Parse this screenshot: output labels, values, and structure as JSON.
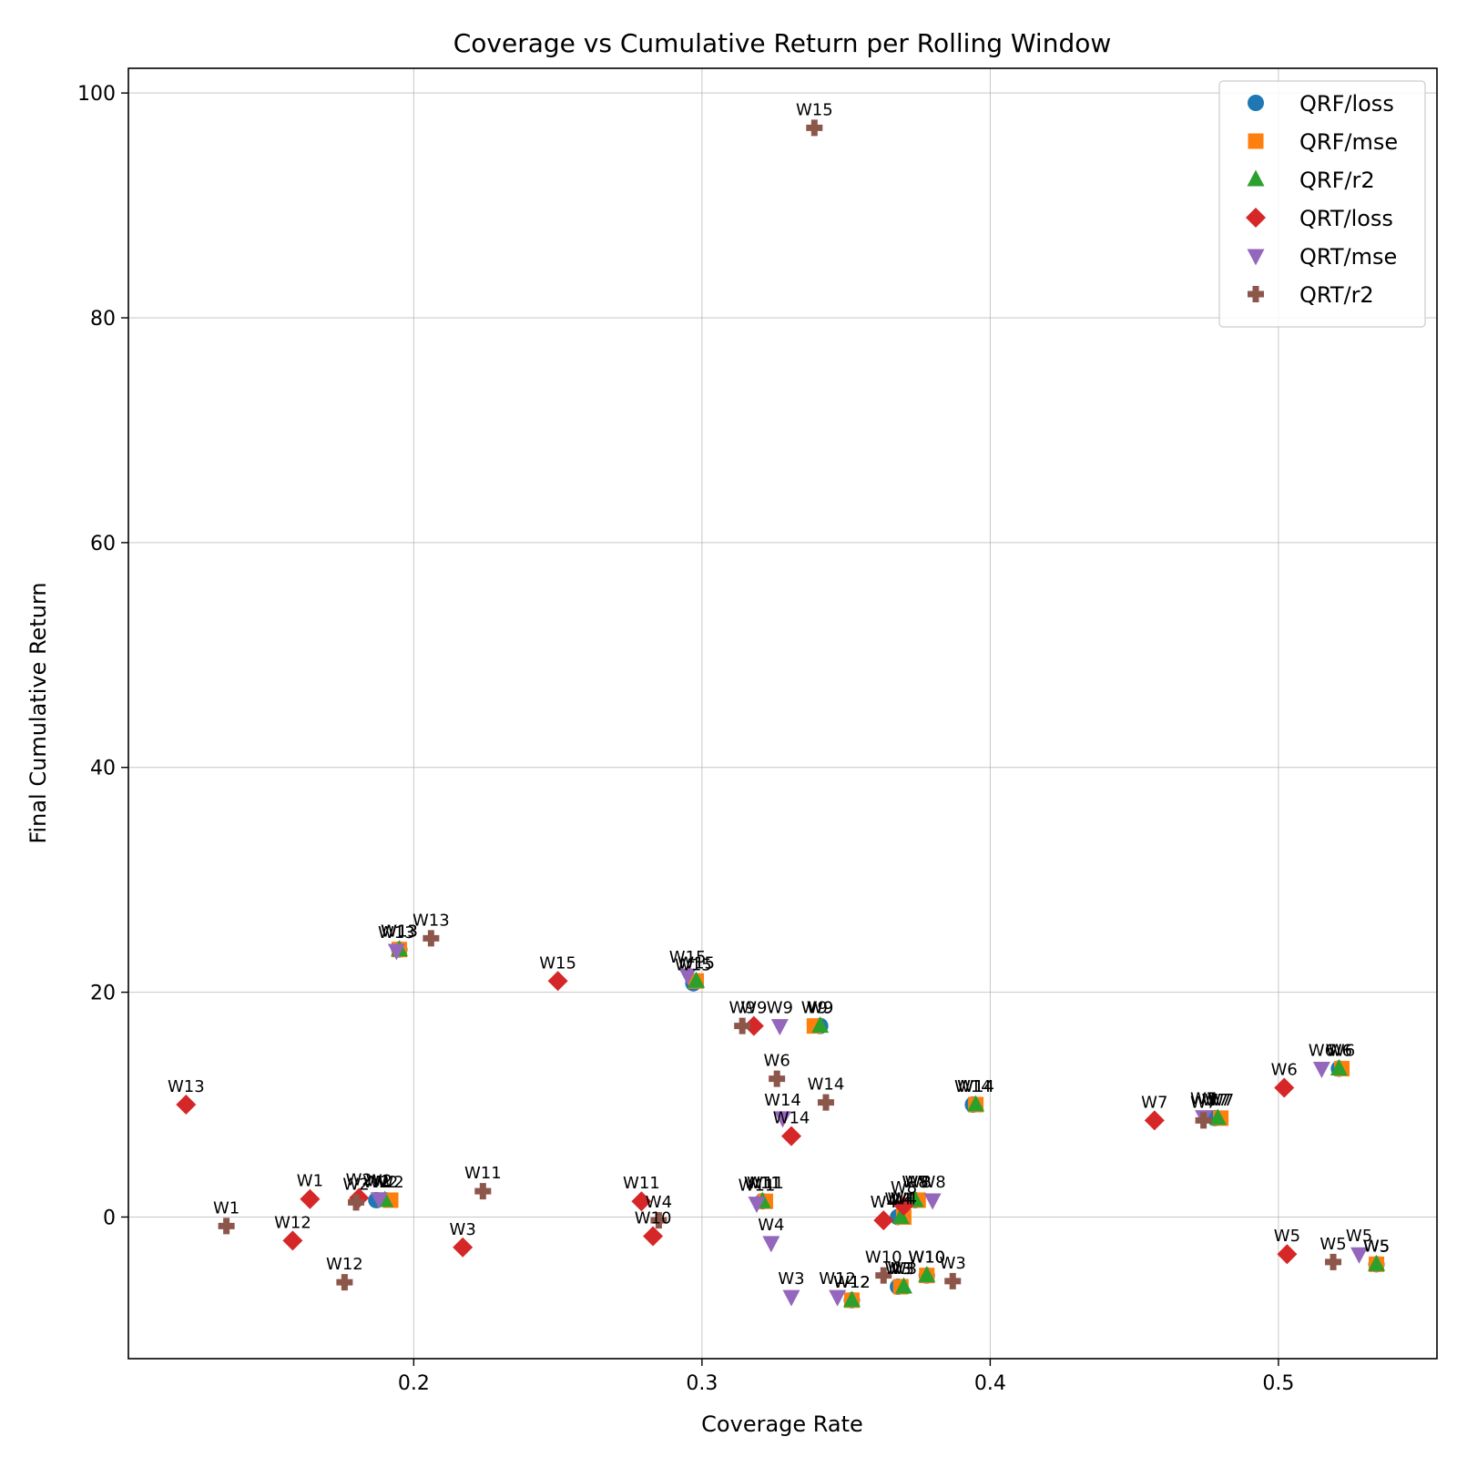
{
  "chart_data": {
    "type": "scatter",
    "title": "Coverage vs Cumulative Return per Rolling Window",
    "xlabel": "Coverage Rate",
    "ylabel": "Final Cumulative Return",
    "xlim": [
      0.101,
      0.555
    ],
    "ylim": [
      -12.6,
      102.2
    ],
    "xticks": [
      0.2,
      0.3,
      0.4,
      0.5
    ],
    "xtick_labels": [
      "0.2",
      "0.3",
      "0.4",
      "0.5"
    ],
    "yticks": [
      0,
      20,
      40,
      60,
      80,
      100
    ],
    "ytick_labels": [
      "0",
      "20",
      "40",
      "60",
      "80",
      "100"
    ],
    "grid": true,
    "legend_position": "top-right",
    "series": [
      {
        "name": "QRF/loss",
        "marker": "circle",
        "color": "#1f77b4",
        "points": [
          {
            "label": "W2",
            "x": 0.187,
            "y": 1.5
          },
          {
            "label": "W13",
            "x": 0.195,
            "y": 23.8
          },
          {
            "label": "W15",
            "x": 0.297,
            "y": 20.8
          },
          {
            "label": "W11",
            "x": 0.321,
            "y": 1.4
          },
          {
            "label": "W9",
            "x": 0.341,
            "y": 17.0
          },
          {
            "label": "W12",
            "x": 0.352,
            "y": -7.4
          },
          {
            "label": "W4",
            "x": 0.368,
            "y": 0.0
          },
          {
            "label": "W3",
            "x": 0.368,
            "y": -6.2
          },
          {
            "label": "W8",
            "x": 0.374,
            "y": 1.5
          },
          {
            "label": "W10",
            "x": 0.378,
            "y": -5.2
          },
          {
            "label": "W14",
            "x": 0.394,
            "y": 10.0
          },
          {
            "label": "W7",
            "x": 0.478,
            "y": 8.8
          },
          {
            "label": "W6",
            "x": 0.521,
            "y": 13.2
          },
          {
            "label": "W5",
            "x": 0.534,
            "y": -4.2
          }
        ]
      },
      {
        "name": "QRF/mse",
        "marker": "square",
        "color": "#ff7f0e",
        "points": [
          {
            "label": "W2",
            "x": 0.192,
            "y": 1.5
          },
          {
            "label": "W13",
            "x": 0.195,
            "y": 23.8
          },
          {
            "label": "W15",
            "x": 0.298,
            "y": 21.0
          },
          {
            "label": "W11",
            "x": 0.322,
            "y": 1.4
          },
          {
            "label": "W9",
            "x": 0.339,
            "y": 17.0
          },
          {
            "label": "W12",
            "x": 0.352,
            "y": -7.4
          },
          {
            "label": "W4",
            "x": 0.37,
            "y": 0.0
          },
          {
            "label": "W3",
            "x": 0.369,
            "y": -6.2
          },
          {
            "label": "W8",
            "x": 0.375,
            "y": 1.5
          },
          {
            "label": "W10",
            "x": 0.378,
            "y": -5.2
          },
          {
            "label": "W14",
            "x": 0.395,
            "y": 10.0
          },
          {
            "label": "W7",
            "x": 0.48,
            "y": 8.8
          },
          {
            "label": "W6",
            "x": 0.522,
            "y": 13.2
          },
          {
            "label": "W5",
            "x": 0.534,
            "y": -4.2
          }
        ]
      },
      {
        "name": "QRF/r2",
        "marker": "triangle-up",
        "color": "#2ca02c",
        "points": [
          {
            "label": "W2",
            "x": 0.19,
            "y": 1.5
          },
          {
            "label": "W13",
            "x": 0.195,
            "y": 23.8
          },
          {
            "label": "W15",
            "x": 0.298,
            "y": 21.0
          },
          {
            "label": "W11",
            "x": 0.321,
            "y": 1.4
          },
          {
            "label": "W9",
            "x": 0.341,
            "y": 17.0
          },
          {
            "label": "W12",
            "x": 0.352,
            "y": -7.4
          },
          {
            "label": "W4",
            "x": 0.369,
            "y": 0.0
          },
          {
            "label": "W3",
            "x": 0.37,
            "y": -6.2
          },
          {
            "label": "W8",
            "x": 0.374,
            "y": 1.5
          },
          {
            "label": "W10",
            "x": 0.378,
            "y": -5.2
          },
          {
            "label": "W14",
            "x": 0.395,
            "y": 10.0
          },
          {
            "label": "W7",
            "x": 0.479,
            "y": 8.8
          },
          {
            "label": "W6",
            "x": 0.521,
            "y": 13.2
          },
          {
            "label": "W5",
            "x": 0.534,
            "y": -4.2
          }
        ]
      },
      {
        "name": "QRT/loss",
        "marker": "diamond",
        "color": "#d62728",
        "points": [
          {
            "label": "W13",
            "x": 0.121,
            "y": 10.0
          },
          {
            "label": "W12",
            "x": 0.158,
            "y": -2.1
          },
          {
            "label": "W1",
            "x": 0.164,
            "y": 1.6
          },
          {
            "label": "W2",
            "x": 0.181,
            "y": 1.7
          },
          {
            "label": "W3",
            "x": 0.217,
            "y": -2.7
          },
          {
            "label": "W15",
            "x": 0.25,
            "y": 21.0
          },
          {
            "label": "W11",
            "x": 0.279,
            "y": 1.4
          },
          {
            "label": "W10",
            "x": 0.283,
            "y": -1.7
          },
          {
            "label": "W9",
            "x": 0.318,
            "y": 17.0
          },
          {
            "label": "W14",
            "x": 0.331,
            "y": 7.2
          },
          {
            "label": "W4",
            "x": 0.363,
            "y": -0.3
          },
          {
            "label": "W8",
            "x": 0.37,
            "y": 1.0
          },
          {
            "label": "W7",
            "x": 0.457,
            "y": 8.6
          },
          {
            "label": "W6",
            "x": 0.502,
            "y": 11.5
          },
          {
            "label": "W5",
            "x": 0.503,
            "y": -3.3
          }
        ]
      },
      {
        "name": "QRT/mse",
        "marker": "triangle-down",
        "color": "#9467bd",
        "points": [
          {
            "label": "W2",
            "x": 0.188,
            "y": 1.6
          },
          {
            "label": "W13",
            "x": 0.194,
            "y": 23.7
          },
          {
            "label": "W15",
            "x": 0.295,
            "y": 21.5
          },
          {
            "label": "W11",
            "x": 0.319,
            "y": 1.2
          },
          {
            "label": "W9",
            "x": 0.327,
            "y": 17.0
          },
          {
            "label": "W4",
            "x": 0.324,
            "y": -2.3
          },
          {
            "label": "W3",
            "x": 0.331,
            "y": -7.1
          },
          {
            "label": "W14",
            "x": 0.328,
            "y": 8.8
          },
          {
            "label": "W12",
            "x": 0.347,
            "y": -7.1
          },
          {
            "label": "W8",
            "x": 0.38,
            "y": 1.5
          },
          {
            "label": "W7",
            "x": 0.474,
            "y": 8.9
          },
          {
            "label": "W6",
            "x": 0.515,
            "y": 13.2
          },
          {
            "label": "W5",
            "x": 0.528,
            "y": -3.3
          }
        ]
      },
      {
        "name": "QRT/r2",
        "marker": "plus",
        "color": "#8c564b",
        "points": [
          {
            "label": "W1",
            "x": 0.135,
            "y": -0.8
          },
          {
            "label": "W12",
            "x": 0.176,
            "y": -5.8
          },
          {
            "label": "W2",
            "x": 0.18,
            "y": 1.3
          },
          {
            "label": "W13",
            "x": 0.206,
            "y": 24.8
          },
          {
            "label": "W11",
            "x": 0.224,
            "y": 2.3
          },
          {
            "label": "W4",
            "x": 0.285,
            "y": -0.3
          },
          {
            "label": "W9",
            "x": 0.314,
            "y": 17.0
          },
          {
            "label": "W6",
            "x": 0.326,
            "y": 12.3
          },
          {
            "label": "W15",
            "x": 0.339,
            "y": 96.9
          },
          {
            "label": "W14",
            "x": 0.343,
            "y": 10.2
          },
          {
            "label": "W10",
            "x": 0.363,
            "y": -5.2
          },
          {
            "label": "W3",
            "x": 0.387,
            "y": -5.7
          },
          {
            "label": "W7",
            "x": 0.474,
            "y": 8.6
          },
          {
            "label": "W5",
            "x": 0.519,
            "y": -4.0
          }
        ]
      }
    ]
  }
}
